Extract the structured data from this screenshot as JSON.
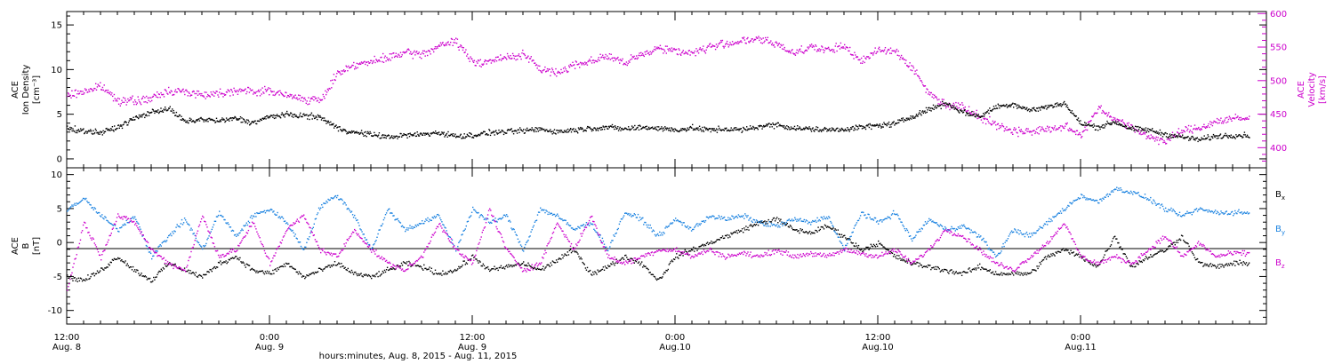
{
  "colors": {
    "axis": "#000000",
    "density": "#000000",
    "velocity": "#cc00cc",
    "bx": "#000000",
    "by": "#1a82e0",
    "bz": "#cc00cc"
  },
  "x_axis": {
    "title": "hours:minutes, Aug.  8, 2015 - Aug. 11, 2015",
    "range_hours": [
      0,
      72
    ],
    "major_ticks": [
      {
        "h": 0,
        "time": "12:00",
        "date": "Aug. 8"
      },
      {
        "h": 12,
        "time": "0:00",
        "date": "Aug. 9"
      },
      {
        "h": 24,
        "time": "12:00",
        "date": "Aug. 9"
      },
      {
        "h": 36,
        "time": "0:00",
        "date": "Aug.10"
      },
      {
        "h": 48,
        "time": "12:00",
        "date": "Aug.10"
      },
      {
        "h": 60,
        "time": "0:00",
        "date": "Aug.11"
      }
    ],
    "minor_tick_step_hours": 1
  },
  "chart_data": [
    {
      "type": "scatter",
      "panel": "plasma",
      "ylabel_left": [
        "ACE",
        "Ion Density",
        "[cm⁻³]"
      ],
      "ylabel_right": [
        "ACE",
        "Velocity",
        "[km/s]"
      ],
      "ylim_left": [
        -1,
        16.5
      ],
      "ylim_right": [
        370,
        603
      ],
      "yticks_left": [
        "0",
        "5",
        "10",
        "15"
      ],
      "yticks_right": [
        "400",
        "450",
        "500",
        "550",
        "600"
      ],
      "series": [
        {
          "axis": "left",
          "color_key": "density",
          "x": [
            0,
            1,
            2,
            3,
            4,
            5,
            6,
            7,
            8,
            9,
            10,
            11,
            12,
            13,
            14,
            15,
            16,
            17,
            18,
            19,
            20,
            21,
            22,
            23,
            24,
            25,
            26,
            27,
            28,
            29,
            30,
            31,
            32,
            33,
            34,
            35,
            36,
            37,
            38,
            39,
            40,
            41,
            42,
            43,
            44,
            45,
            46,
            47,
            48,
            49,
            50,
            51,
            52,
            53,
            54,
            55,
            56,
            57,
            58,
            59,
            60,
            61,
            62,
            63,
            64,
            65,
            66,
            67,
            68,
            69
          ],
          "y": [
            3.5,
            3.2,
            3.0,
            3.6,
            4.6,
            5.3,
            5.7,
            4.2,
            4.5,
            4.3,
            4.6,
            4.1,
            4.8,
            5.0,
            4.9,
            4.7,
            3.5,
            3.0,
            2.8,
            2.5,
            2.7,
            2.8,
            3.0,
            2.6,
            2.7,
            3.0,
            3.1,
            3.2,
            3.4,
            3.1,
            3.3,
            3.5,
            3.6,
            3.4,
            3.6,
            3.5,
            3.3,
            3.5,
            3.3,
            3.4,
            3.3,
            3.7,
            3.9,
            3.5,
            3.4,
            3.3,
            3.4,
            3.6,
            3.8,
            4.0,
            4.8,
            5.6,
            6.3,
            5.3,
            4.8,
            5.9,
            6.2,
            5.5,
            5.9,
            6.3,
            4.0,
            3.6,
            4.2,
            3.4,
            3.3,
            2.8,
            2.5,
            2.2,
            2.6,
            2.7
          ]
        },
        {
          "axis": "right",
          "color_key": "velocity",
          "x": [
            0,
            1,
            2,
            3,
            4,
            5,
            6,
            7,
            8,
            9,
            10,
            11,
            12,
            13,
            14,
            15,
            16,
            17,
            18,
            19,
            20,
            21,
            22,
            23,
            24,
            25,
            26,
            27,
            28,
            29,
            30,
            31,
            32,
            33,
            34,
            35,
            36,
            37,
            38,
            39,
            40,
            41,
            42,
            43,
            44,
            45,
            46,
            47,
            48,
            49,
            50,
            51,
            52,
            53,
            54,
            55,
            56,
            57,
            58,
            59,
            60,
            61,
            62,
            63,
            64,
            65,
            66,
            67,
            68,
            69
          ],
          "y": [
            478,
            485,
            492,
            472,
            470,
            474,
            486,
            484,
            480,
            482,
            487,
            484,
            486,
            478,
            474,
            470,
            512,
            525,
            528,
            535,
            542,
            540,
            552,
            560,
            528,
            530,
            535,
            540,
            518,
            512,
            525,
            530,
            538,
            526,
            540,
            550,
            545,
            542,
            551,
            556,
            560,
            562,
            555,
            542,
            552,
            545,
            553,
            528,
            548,
            545,
            520,
            482,
            465,
            462,
            448,
            434,
            426,
            425,
            428,
            432,
            420,
            460,
            444,
            430,
            418,
            410,
            426,
            430,
            440,
            444
          ]
        }
      ]
    },
    {
      "type": "scatter",
      "panel": "imf",
      "ylabel_left": [
        "ACE",
        "B",
        "[nT]"
      ],
      "ylim": [
        -12,
        11
      ],
      "yticks": [
        "-10",
        "-5",
        "0",
        "5",
        "10"
      ],
      "legend": [
        "Bx",
        "By",
        "Bz"
      ],
      "series": [
        {
          "name": "Bx",
          "color_key": "bx",
          "x": [
            0,
            1,
            2,
            3,
            4,
            5,
            6,
            7,
            8,
            9,
            10,
            11,
            12,
            13,
            14,
            15,
            16,
            17,
            18,
            19,
            20,
            21,
            22,
            23,
            24,
            25,
            26,
            27,
            28,
            29,
            30,
            31,
            32,
            33,
            34,
            35,
            36,
            37,
            38,
            39,
            40,
            41,
            42,
            43,
            44,
            45,
            46,
            47,
            48,
            49,
            50,
            51,
            52,
            53,
            54,
            55,
            56,
            57,
            58,
            59,
            60,
            61,
            62,
            63,
            64,
            65,
            66,
            67,
            68,
            69
          ],
          "y": [
            -5,
            -5.5,
            -4,
            -2,
            -4,
            -5.5,
            -3,
            -4,
            -5,
            -3,
            -2,
            -4,
            -4.5,
            -3,
            -5,
            -4,
            -3,
            -4.5,
            -5,
            -4,
            -3,
            -3.5,
            -4.5,
            -4,
            -2,
            -4,
            -3.5,
            -3,
            -4,
            -2.5,
            -1,
            -4.5,
            -3.5,
            -2,
            -3,
            -5.5,
            -2,
            -1,
            0,
            1,
            2,
            3,
            3.5,
            2,
            1.5,
            2.5,
            1,
            -1,
            0,
            -2,
            -3,
            -3.5,
            -4,
            -4.5,
            -3.5,
            -4.5,
            -4.5,
            -4.5,
            -2,
            -1,
            -2,
            -3.5,
            1,
            -3.5,
            -2,
            -1,
            1,
            -3,
            -3.5,
            -3
          ]
        },
        {
          "name": "By",
          "color_key": "by",
          "x": [
            0,
            1,
            2,
            3,
            4,
            5,
            6,
            7,
            8,
            9,
            10,
            11,
            12,
            13,
            14,
            15,
            16,
            17,
            18,
            19,
            20,
            21,
            22,
            23,
            24,
            25,
            26,
            27,
            28,
            29,
            30,
            31,
            32,
            33,
            34,
            35,
            36,
            37,
            38,
            39,
            40,
            41,
            42,
            43,
            44,
            45,
            46,
            47,
            48,
            49,
            50,
            51,
            52,
            53,
            54,
            55,
            56,
            57,
            58,
            59,
            60,
            61,
            62,
            63,
            64,
            65,
            66,
            67,
            68,
            69
          ],
          "y": [
            5,
            6.5,
            4,
            2,
            4,
            -2,
            1,
            3.5,
            -1,
            4.5,
            1,
            4,
            5,
            3,
            -1,
            5.5,
            7,
            4,
            -1,
            5,
            2,
            3,
            4,
            -1,
            5,
            3,
            4,
            -1,
            5,
            4,
            2,
            3,
            -1,
            4.5,
            3.5,
            1,
            3.5,
            2,
            4,
            3.5,
            4,
            3,
            2.5,
            3.5,
            3,
            4,
            -1,
            4.5,
            3,
            4.5,
            0.5,
            3.5,
            2,
            2.5,
            1,
            -2,
            2,
            1,
            3,
            5,
            7,
            6,
            8,
            7.5,
            6.5,
            5,
            4,
            5,
            4.5,
            4.5
          ]
        },
        {
          "name": "Bz",
          "color_key": "bz",
          "x": [
            0,
            1,
            2,
            3,
            4,
            5,
            6,
            7,
            8,
            9,
            10,
            11,
            12,
            13,
            14,
            15,
            16,
            17,
            18,
            19,
            20,
            21,
            22,
            23,
            24,
            25,
            26,
            27,
            28,
            29,
            30,
            31,
            32,
            33,
            34,
            35,
            36,
            37,
            38,
            39,
            40,
            41,
            42,
            43,
            44,
            45,
            46,
            47,
            48,
            49,
            50,
            51,
            52,
            53,
            54,
            55,
            56,
            57,
            58,
            59,
            60,
            61,
            62,
            63,
            64,
            65,
            66,
            67,
            68,
            69
          ],
          "y": [
            -7,
            3,
            -2,
            4,
            3,
            -1,
            -3,
            -4,
            4,
            -2,
            -1,
            3,
            -3,
            2,
            4,
            -1,
            -2,
            2,
            -1,
            -3,
            -4,
            -2,
            3,
            -1,
            -3,
            5,
            -1,
            -4,
            -3,
            3,
            -1,
            4,
            -2,
            -3,
            -2,
            -1,
            -1,
            -2,
            -1,
            -2,
            -1.5,
            -2,
            -1,
            -2,
            -1.5,
            -2,
            -1,
            -1.5,
            -2,
            -1,
            -3,
            -1,
            2,
            1,
            -1,
            -3,
            -4,
            -2,
            0,
            3,
            -2,
            -3,
            -2,
            -3,
            -1,
            1,
            -2,
            0,
            -2,
            -1.5
          ]
        }
      ]
    }
  ]
}
